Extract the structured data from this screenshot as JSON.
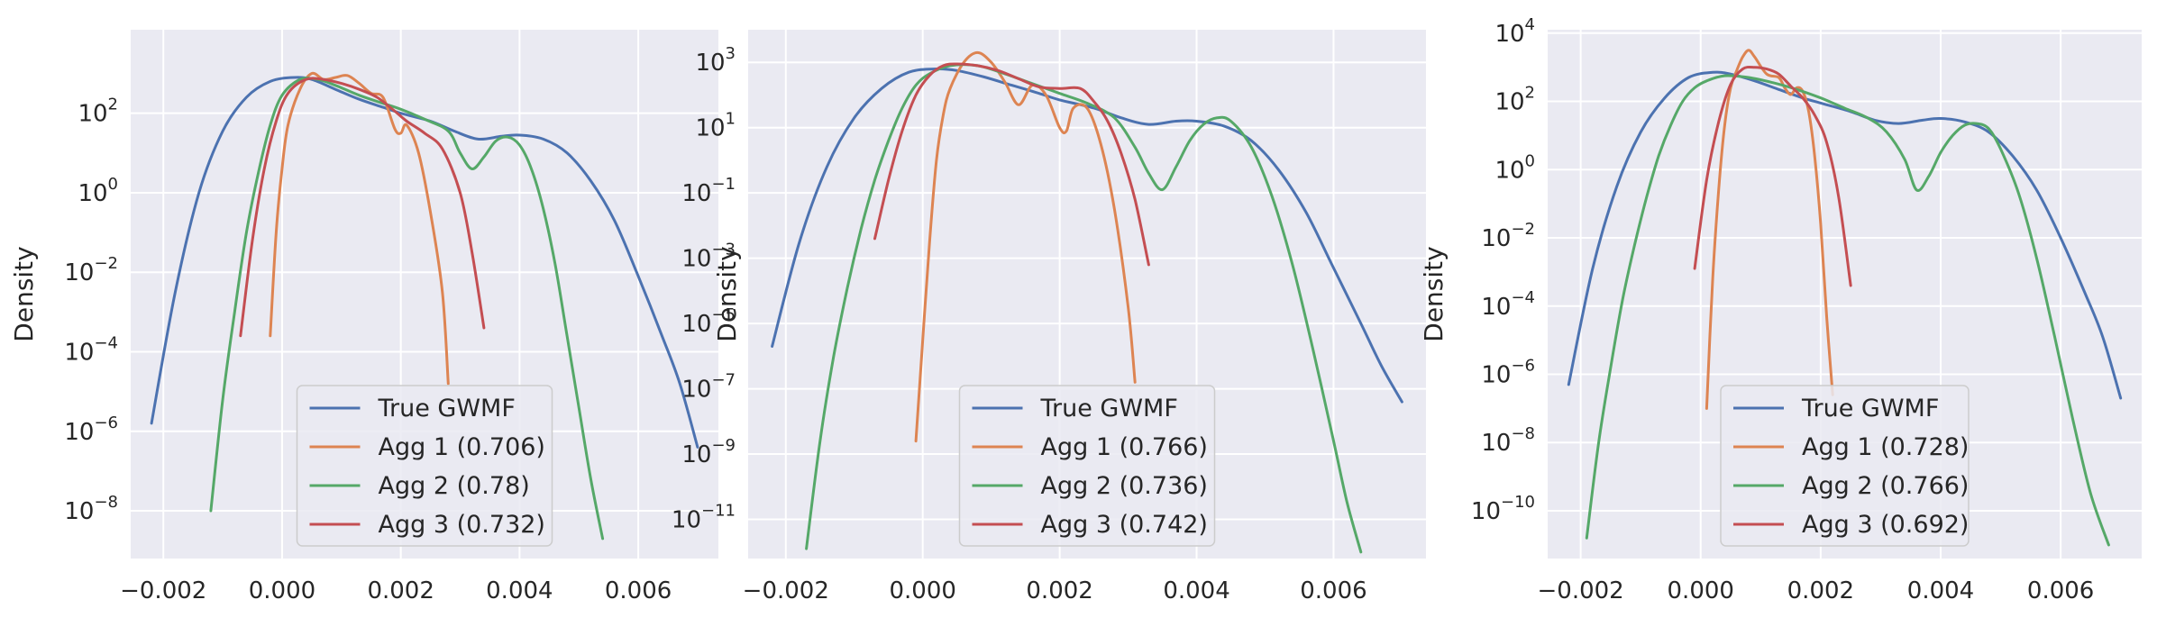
{
  "chart_data": [
    {
      "type": "line",
      "ylabel": "Density",
      "yscale": "log",
      "xlim": [
        -0.00255,
        0.00735
      ],
      "ylim_log10": [
        -9.2,
        4.1
      ],
      "xticks": [
        -0.002,
        0.0,
        0.002,
        0.004,
        0.006
      ],
      "xtick_labels": [
        "−0.002",
        "0.000",
        "0.002",
        "0.004",
        "0.006"
      ],
      "yticks_exp": [
        2,
        0,
        -2,
        -4,
        -6,
        -8
      ],
      "grid": true,
      "legend_position": "lower-center",
      "series": [
        {
          "name": "True GWMF",
          "color": "#4c72b0",
          "x": [
            -0.0022,
            -0.0018,
            -0.0014,
            -0.001,
            -0.0006,
            -0.0002,
            0.0002,
            0.0005,
            0.0009,
            0.0013,
            0.0017,
            0.002,
            0.0025,
            0.0029,
            0.0033,
            0.0037,
            0.004,
            0.0044,
            0.0048,
            0.0052,
            0.0056,
            0.006,
            0.0064,
            0.0067,
            0.007
          ],
          "y_log10": [
            -5.8,
            -2.5,
            0.0,
            1.55,
            2.4,
            2.8,
            2.9,
            2.85,
            2.6,
            2.35,
            2.15,
            2.0,
            1.8,
            1.55,
            1.35,
            1.42,
            1.45,
            1.35,
            1.0,
            0.3,
            -0.7,
            -2.1,
            -3.6,
            -4.8,
            -6.4
          ]
        },
        {
          "name": "Agg 1 (0.706)",
          "color": "#dd8452",
          "x": [
            -0.0002,
            -0.0001,
            0.0,
            0.0001,
            0.0003,
            0.0005,
            0.0007,
            0.0009,
            0.0011,
            0.0013,
            0.0015,
            0.0017,
            0.0019,
            0.002,
            0.0021,
            0.0023,
            0.0025,
            0.0027,
            0.0028
          ],
          "y_log10": [
            -3.6,
            -1.0,
            0.6,
            1.7,
            2.6,
            3.0,
            2.85,
            2.9,
            2.95,
            2.75,
            2.5,
            2.4,
            1.6,
            1.5,
            1.7,
            1.0,
            -0.5,
            -2.5,
            -4.8
          ]
        },
        {
          "name": "Agg 2 (0.78)",
          "color": "#55a868",
          "x": [
            -0.0012,
            -0.001,
            -0.0008,
            -0.0006,
            -0.0004,
            -0.0002,
            0.0,
            0.0003,
            0.0006,
            0.0009,
            0.0013,
            0.0017,
            0.002,
            0.0024,
            0.0028,
            0.003,
            0.0032,
            0.0034,
            0.0036,
            0.0038,
            0.004,
            0.0042,
            0.0044,
            0.0046,
            0.0048,
            0.005,
            0.0052,
            0.0054
          ],
          "y_log10": [
            -8.0,
            -5.2,
            -3.0,
            -1.0,
            0.5,
            1.7,
            2.45,
            2.85,
            2.85,
            2.7,
            2.45,
            2.25,
            2.1,
            1.85,
            1.55,
            1.0,
            0.6,
            0.9,
            1.3,
            1.4,
            1.2,
            0.6,
            -0.4,
            -1.8,
            -3.6,
            -5.4,
            -7.2,
            -8.7
          ]
        },
        {
          "name": "Agg 3 (0.732)",
          "color": "#c44e52",
          "x": [
            -0.0007,
            -0.0005,
            -0.0003,
            -0.0001,
            0.0001,
            0.0004,
            0.0007,
            0.001,
            0.0013,
            0.0016,
            0.0019,
            0.0021,
            0.0024,
            0.0027,
            0.003,
            0.0032,
            0.0034
          ],
          "y_log10": [
            -3.6,
            -1.2,
            0.6,
            1.8,
            2.5,
            2.85,
            2.85,
            2.75,
            2.6,
            2.4,
            2.05,
            1.8,
            1.5,
            1.1,
            0.0,
            -1.5,
            -3.4
          ]
        }
      ]
    },
    {
      "type": "line",
      "ylabel": "Density",
      "yscale": "log",
      "xlim": [
        -0.00255,
        0.00735
      ],
      "ylim_log10": [
        -12.2,
        4.0
      ],
      "xticks": [
        -0.002,
        0.0,
        0.002,
        0.004,
        0.006
      ],
      "xtick_labels": [
        "−0.002",
        "0.000",
        "0.002",
        "0.004",
        "0.006"
      ],
      "yticks_exp": [
        3,
        1,
        -1,
        -3,
        -5,
        -7,
        -9,
        -11
      ],
      "grid": true,
      "legend_position": "lower-center",
      "series": [
        {
          "name": "True GWMF",
          "color": "#4c72b0",
          "x": [
            -0.0022,
            -0.0018,
            -0.0014,
            -0.001,
            -0.0006,
            -0.0002,
            0.0002,
            0.0005,
            0.0009,
            0.0013,
            0.0017,
            0.002,
            0.0025,
            0.0029,
            0.0033,
            0.0037,
            0.004,
            0.0044,
            0.0048,
            0.0052,
            0.0056,
            0.006,
            0.0064,
            0.0067,
            0.007
          ],
          "y_log10": [
            -5.7,
            -2.5,
            -0.2,
            1.3,
            2.2,
            2.7,
            2.8,
            2.75,
            2.55,
            2.3,
            2.05,
            1.85,
            1.6,
            1.3,
            1.1,
            1.2,
            1.2,
            1.05,
            0.6,
            -0.3,
            -1.6,
            -3.3,
            -5.0,
            -6.3,
            -7.4
          ]
        },
        {
          "name": "Agg 1 (0.766)",
          "color": "#dd8452",
          "x": [
            -0.0001,
            0.0,
            0.0001,
            0.0002,
            0.0003,
            0.0004,
            0.0006,
            0.0008,
            0.001,
            0.0012,
            0.0014,
            0.0016,
            0.0018,
            0.002,
            0.0021,
            0.0022,
            0.0024,
            0.0026,
            0.0028,
            0.003,
            0.0031
          ],
          "y_log10": [
            -8.6,
            -5.5,
            -2.5,
            0.0,
            1.4,
            2.2,
            3.0,
            3.3,
            3.0,
            2.4,
            1.7,
            2.3,
            2.0,
            1.0,
            0.9,
            1.6,
            1.6,
            0.5,
            -1.5,
            -4.5,
            -6.8
          ]
        },
        {
          "name": "Agg 2 (0.736)",
          "color": "#55a868",
          "x": [
            -0.0017,
            -0.0015,
            -0.0013,
            -0.0011,
            -0.0009,
            -0.0007,
            -0.0005,
            -0.0003,
            -0.0001,
            0.0001,
            0.0004,
            0.0008,
            0.0012,
            0.0016,
            0.002,
            0.0024,
            0.0028,
            0.0031,
            0.0033,
            0.0035,
            0.0037,
            0.0039,
            0.0041,
            0.0043,
            0.0045,
            0.0048,
            0.0051,
            0.0054,
            0.0057,
            0.006,
            0.0062,
            0.0064
          ],
          "y_log10": [
            -11.9,
            -8.6,
            -6.0,
            -3.9,
            -2.1,
            -0.6,
            0.6,
            1.6,
            2.3,
            2.65,
            2.9,
            2.9,
            2.65,
            2.35,
            2.05,
            1.75,
            1.3,
            0.4,
            -0.4,
            -0.9,
            -0.2,
            0.6,
            1.1,
            1.3,
            1.2,
            0.4,
            -1.1,
            -3.2,
            -5.8,
            -8.6,
            -10.5,
            -12.0
          ]
        },
        {
          "name": "Agg 3 (0.742)",
          "color": "#c44e52",
          "x": [
            -0.0007,
            -0.0005,
            -0.0003,
            -0.0001,
            0.0001,
            0.0003,
            0.0005,
            0.0008,
            0.0011,
            0.0014,
            0.0017,
            0.002,
            0.0023,
            0.0025,
            0.0027,
            0.0029,
            0.0031,
            0.0033
          ],
          "y_log10": [
            -2.4,
            -0.6,
            0.9,
            2.0,
            2.6,
            2.9,
            2.95,
            2.9,
            2.75,
            2.5,
            2.25,
            2.2,
            2.2,
            1.8,
            1.2,
            0.2,
            -1.2,
            -3.2
          ]
        }
      ]
    },
    {
      "type": "line",
      "ylabel": "Density",
      "yscale": "log",
      "xlim": [
        -0.00255,
        0.00735
      ],
      "ylim_log10": [
        -11.4,
        4.1
      ],
      "xticks": [
        -0.002,
        0.0,
        0.002,
        0.004,
        0.006
      ],
      "xtick_labels": [
        "−0.002",
        "0.000",
        "0.002",
        "0.004",
        "0.006"
      ],
      "yticks_exp": [
        4,
        2,
        0,
        -2,
        -4,
        -6,
        -8,
        -10
      ],
      "grid": true,
      "legend_position": "lower-center",
      "series": [
        {
          "name": "True GWMF",
          "color": "#4c72b0",
          "x": [
            -0.0022,
            -0.0018,
            -0.0014,
            -0.001,
            -0.0006,
            -0.0002,
            0.0002,
            0.0005,
            0.0009,
            0.0013,
            0.0017,
            0.002,
            0.0025,
            0.0029,
            0.0033,
            0.0037,
            0.004,
            0.0044,
            0.0048,
            0.0052,
            0.0056,
            0.006,
            0.0064,
            0.0067,
            0.007
          ],
          "y_log10": [
            -6.3,
            -2.9,
            -0.5,
            1.1,
            2.1,
            2.7,
            2.85,
            2.8,
            2.6,
            2.35,
            2.1,
            1.95,
            1.7,
            1.45,
            1.35,
            1.45,
            1.5,
            1.4,
            1.1,
            0.4,
            -0.6,
            -2.0,
            -3.6,
            -4.9,
            -6.7
          ]
        },
        {
          "name": "Agg 1 (0.728)",
          "color": "#dd8452",
          "x": [
            0.0001,
            0.0002,
            0.0003,
            0.0004,
            0.0005,
            0.0006,
            0.0007,
            0.0008,
            0.0009,
            0.0011,
            0.0013,
            0.0014,
            0.0015,
            0.0016,
            0.0017,
            0.0018,
            0.0019,
            0.002,
            0.0021,
            0.0022
          ],
          "y_log10": [
            -7.0,
            -3.2,
            -0.6,
            1.3,
            2.4,
            2.9,
            3.3,
            3.5,
            3.3,
            2.8,
            2.7,
            2.4,
            2.2,
            2.4,
            2.3,
            1.7,
            0.4,
            -1.6,
            -4.3,
            -6.6
          ]
        },
        {
          "name": "Agg 2 (0.766)",
          "color": "#55a868",
          "x": [
            -0.0019,
            -0.0017,
            -0.0015,
            -0.0013,
            -0.0011,
            -0.0009,
            -0.0007,
            -0.0005,
            -0.0003,
            -0.0001,
            0.0001,
            0.0004,
            0.0008,
            0.0012,
            0.0016,
            0.002,
            0.0024,
            0.0028,
            0.0031,
            0.0034,
            0.0036,
            0.0038,
            0.004,
            0.0042,
            0.0044,
            0.0046,
            0.0048,
            0.005,
            0.0053,
            0.0056,
            0.0059,
            0.0062,
            0.0065,
            0.0068
          ],
          "y_log10": [
            -10.8,
            -8.0,
            -5.8,
            -3.8,
            -2.2,
            -0.8,
            0.4,
            1.3,
            2.0,
            2.4,
            2.6,
            2.75,
            2.7,
            2.55,
            2.35,
            2.1,
            1.8,
            1.5,
            1.1,
            0.3,
            -0.6,
            -0.2,
            0.5,
            1.0,
            1.3,
            1.35,
            1.2,
            0.6,
            -0.7,
            -2.6,
            -4.9,
            -7.3,
            -9.5,
            -11.0
          ]
        },
        {
          "name": "Agg 3 (0.692)",
          "color": "#c44e52",
          "x": [
            -0.0001,
            0.0001,
            0.0003,
            0.0005,
            0.0007,
            0.0009,
            0.0011,
            0.0013,
            0.0015,
            0.0017,
            0.0019,
            0.0021,
            0.0023,
            0.0025
          ],
          "y_log10": [
            -2.9,
            -0.3,
            1.4,
            2.5,
            2.95,
            3.0,
            2.95,
            2.8,
            2.45,
            2.1,
            1.6,
            0.8,
            -0.8,
            -3.4
          ]
        }
      ]
    }
  ]
}
